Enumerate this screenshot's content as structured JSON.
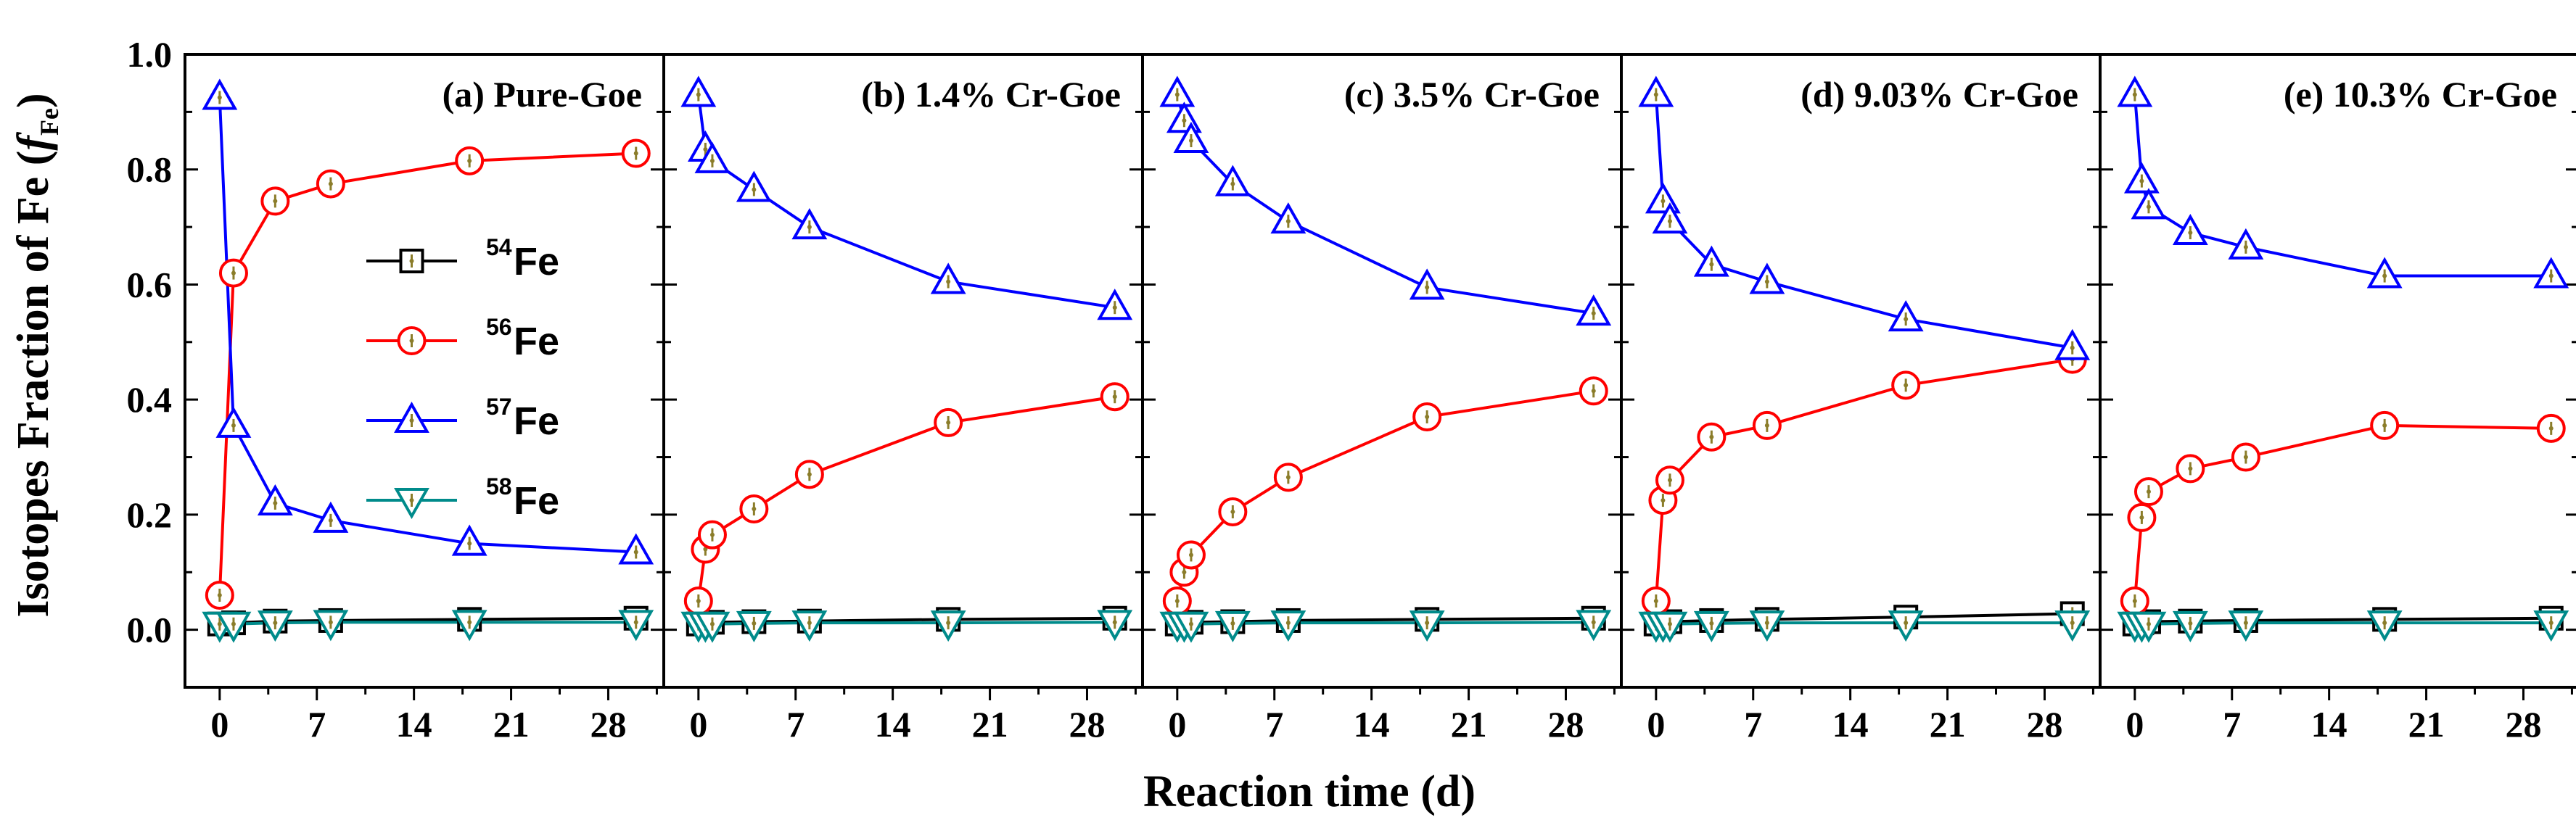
{
  "chart_data": {
    "type": "line",
    "ylabel": "Isotopes Fraction of Fe (",
    "ylabel_symbol": "f",
    "ylabel_subscript": "Fe",
    "ylabel_close": ")",
    "xlabel": "Reaction time (d)",
    "ylim": [
      -0.1,
      1.0
    ],
    "yticks": [
      "0.0",
      "0.2",
      "0.4",
      "0.6",
      "0.8",
      "1.0"
    ],
    "xlim": [
      -2.5,
      32
    ],
    "xticks": [
      "0",
      "7",
      "14",
      "21",
      "28"
    ],
    "legend": {
      "placement": "panel-a-middle",
      "entries": [
        {
          "sup": "54",
          "label": "Fe",
          "marker": "square",
          "color": "#000000"
        },
        {
          "sup": "56",
          "label": "Fe",
          "marker": "circle",
          "color": "#ff0000"
        },
        {
          "sup": "57",
          "label": "Fe",
          "marker": "triangle-up",
          "color": "#0000ff"
        },
        {
          "sup": "58",
          "label": "Fe",
          "marker": "triangle-down",
          "color": "#008b8b"
        }
      ]
    },
    "panels": [
      {
        "title": "(a) Pure-Goe",
        "x": [
          0,
          1,
          4,
          8,
          18,
          30
        ],
        "series": [
          {
            "name": "54Fe",
            "values": [
              0.01,
              0.012,
              0.015,
              0.016,
              0.018,
              0.02
            ]
          },
          {
            "name": "56Fe",
            "values": [
              0.06,
              0.62,
              0.745,
              0.775,
              0.815,
              0.828
            ]
          },
          {
            "name": "57Fe",
            "values": [
              0.925,
              0.355,
              0.22,
              0.19,
              0.15,
              0.135
            ]
          },
          {
            "name": "58Fe",
            "values": [
              0.01,
              0.01,
              0.012,
              0.013,
              0.013,
              0.013
            ]
          }
        ]
      },
      {
        "title": "(b) 1.4% Cr-Goe",
        "x": [
          0,
          0.5,
          1,
          4,
          8,
          18,
          30
        ],
        "series": [
          {
            "name": "54Fe",
            "values": [
              0.01,
              0.012,
              0.013,
              0.014,
              0.015,
              0.018,
              0.02
            ]
          },
          {
            "name": "56Fe",
            "values": [
              0.05,
              0.14,
              0.165,
              0.21,
              0.27,
              0.36,
              0.405
            ]
          },
          {
            "name": "57Fe",
            "values": [
              0.93,
              0.835,
              0.815,
              0.765,
              0.7,
              0.605,
              0.56
            ]
          },
          {
            "name": "58Fe",
            "values": [
              0.01,
              0.01,
              0.01,
              0.011,
              0.012,
              0.012,
              0.013
            ]
          }
        ]
      },
      {
        "title": "(c) 3.5% Cr-Goe",
        "x": [
          0,
          0.5,
          1,
          4,
          8,
          18,
          30
        ],
        "series": [
          {
            "name": "54Fe",
            "values": [
              0.01,
              0.012,
              0.013,
              0.014,
              0.016,
              0.018,
              0.02
            ]
          },
          {
            "name": "56Fe",
            "values": [
              0.05,
              0.1,
              0.13,
              0.205,
              0.265,
              0.37,
              0.415
            ]
          },
          {
            "name": "57Fe",
            "values": [
              0.93,
              0.885,
              0.85,
              0.775,
              0.71,
              0.595,
              0.55
            ]
          },
          {
            "name": "58Fe",
            "values": [
              0.01,
              0.01,
              0.01,
              0.011,
              0.012,
              0.012,
              0.013
            ]
          }
        ]
      },
      {
        "title": "(d) 9.03% Cr-Goe",
        "x": [
          0,
          0.5,
          1,
          4,
          8,
          18,
          30
        ],
        "series": [
          {
            "name": "54Fe",
            "values": [
              0.01,
              0.012,
              0.014,
              0.016,
              0.018,
              0.022,
              0.028
            ]
          },
          {
            "name": "56Fe",
            "values": [
              0.05,
              0.225,
              0.26,
              0.335,
              0.355,
              0.425,
              0.47
            ]
          },
          {
            "name": "57Fe",
            "values": [
              0.93,
              0.745,
              0.71,
              0.635,
              0.605,
              0.54,
              0.49
            ]
          },
          {
            "name": "58Fe",
            "values": [
              0.01,
              0.01,
              0.01,
              0.011,
              0.012,
              0.012,
              0.012
            ]
          }
        ]
      },
      {
        "title": "(e) 10.3% Cr-Goe",
        "x": [
          0,
          0.5,
          1,
          4,
          8,
          18,
          30
        ],
        "series": [
          {
            "name": "54Fe",
            "values": [
              0.01,
              0.012,
              0.014,
              0.015,
              0.016,
              0.018,
              0.02
            ]
          },
          {
            "name": "56Fe",
            "values": [
              0.05,
              0.195,
              0.24,
              0.28,
              0.3,
              0.355,
              0.35
            ]
          },
          {
            "name": "57Fe",
            "values": [
              0.93,
              0.78,
              0.735,
              0.69,
              0.665,
              0.615,
              0.615
            ]
          },
          {
            "name": "58Fe",
            "values": [
              0.01,
              0.01,
              0.01,
              0.011,
              0.012,
              0.012,
              0.012
            ]
          }
        ]
      }
    ]
  }
}
